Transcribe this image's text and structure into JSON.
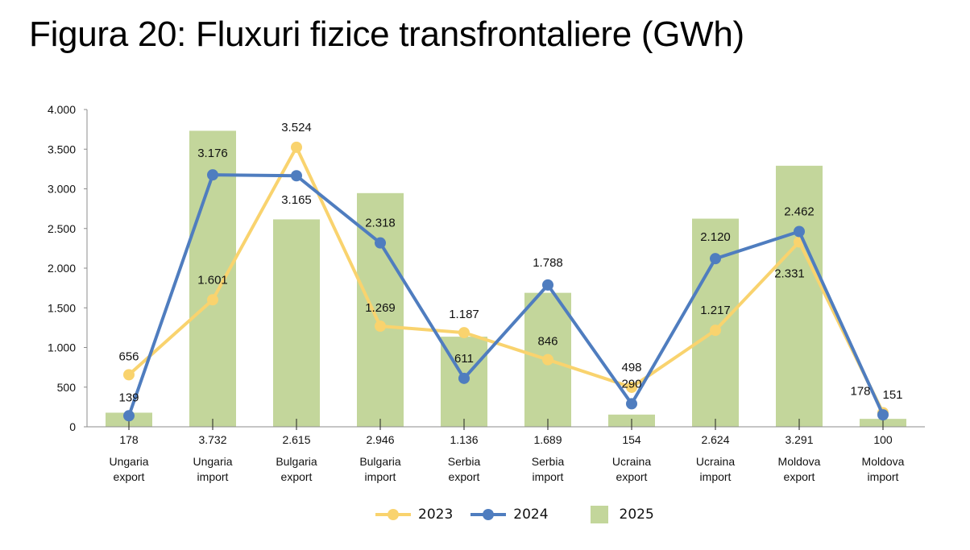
{
  "title": "Figura 20: Fluxuri fizice transfrontaliere (GWh)",
  "colors": {
    "s2023": "#F9D36E",
    "s2024": "#4F7DBF",
    "s2025": "#C3D69B",
    "axis": "#8C8C8C"
  },
  "legend": [
    {
      "label": "2023",
      "type": "line"
    },
    {
      "label": "2024",
      "type": "line"
    },
    {
      "label": "2025",
      "type": "bar"
    }
  ],
  "chart_data": {
    "type": "bar+line",
    "title": "Figura 20: Fluxuri fizice transfrontaliere (GWh)",
    "xlabel": "",
    "ylabel": "",
    "ylim": [
      0,
      4000
    ],
    "yticks": [
      "0",
      "500",
      "1.000",
      "1.500",
      "2.000",
      "2.500",
      "3.000",
      "3.500",
      "4.000"
    ],
    "grid": false,
    "legend_position": "bottom",
    "categories": [
      "Ungaria export",
      "Ungaria import",
      "Bulgaria export",
      "Bulgaria import",
      "Serbia export",
      "Serbia import",
      "Ucraina export",
      "Ucraina import",
      "Moldova export",
      "Moldova import"
    ],
    "category_lines": [
      [
        "Ungaria",
        "export"
      ],
      [
        "Ungaria",
        "import"
      ],
      [
        "Bulgaria",
        "export"
      ],
      [
        "Bulgaria",
        "import"
      ],
      [
        "Serbia",
        "export"
      ],
      [
        "Serbia",
        "import"
      ],
      [
        "Ucraina",
        "export"
      ],
      [
        "Ucraina",
        "import"
      ],
      [
        "Moldova",
        "export"
      ],
      [
        "Moldova",
        "import"
      ]
    ],
    "series": [
      {
        "name": "2023",
        "type": "line",
        "values": [
          656,
          1601,
          3524,
          1269,
          1187,
          846,
          498,
          1217,
          2331,
          178
        ],
        "labels": [
          "656",
          "1.601",
          "3.524",
          "1.269",
          "1.187",
          "846",
          "498",
          "1.217",
          "2.331",
          "178"
        ]
      },
      {
        "name": "2024",
        "type": "line",
        "values": [
          139,
          3176,
          3165,
          2318,
          611,
          1788,
          290,
          2120,
          2462,
          151
        ],
        "labels": [
          "139",
          "3.176",
          "3.165",
          "2.318",
          "611",
          "1.788",
          "290",
          "2.120",
          "2.462",
          "151"
        ]
      },
      {
        "name": "2025",
        "type": "bar",
        "values": [
          178,
          3732,
          2615,
          2946,
          1136,
          1689,
          154,
          2624,
          3291,
          100
        ],
        "labels": [
          "178",
          "3.732",
          "2.615",
          "2.946",
          "1.136",
          "1.689",
          "154",
          "2.624",
          "3.291",
          "100"
        ]
      }
    ]
  }
}
